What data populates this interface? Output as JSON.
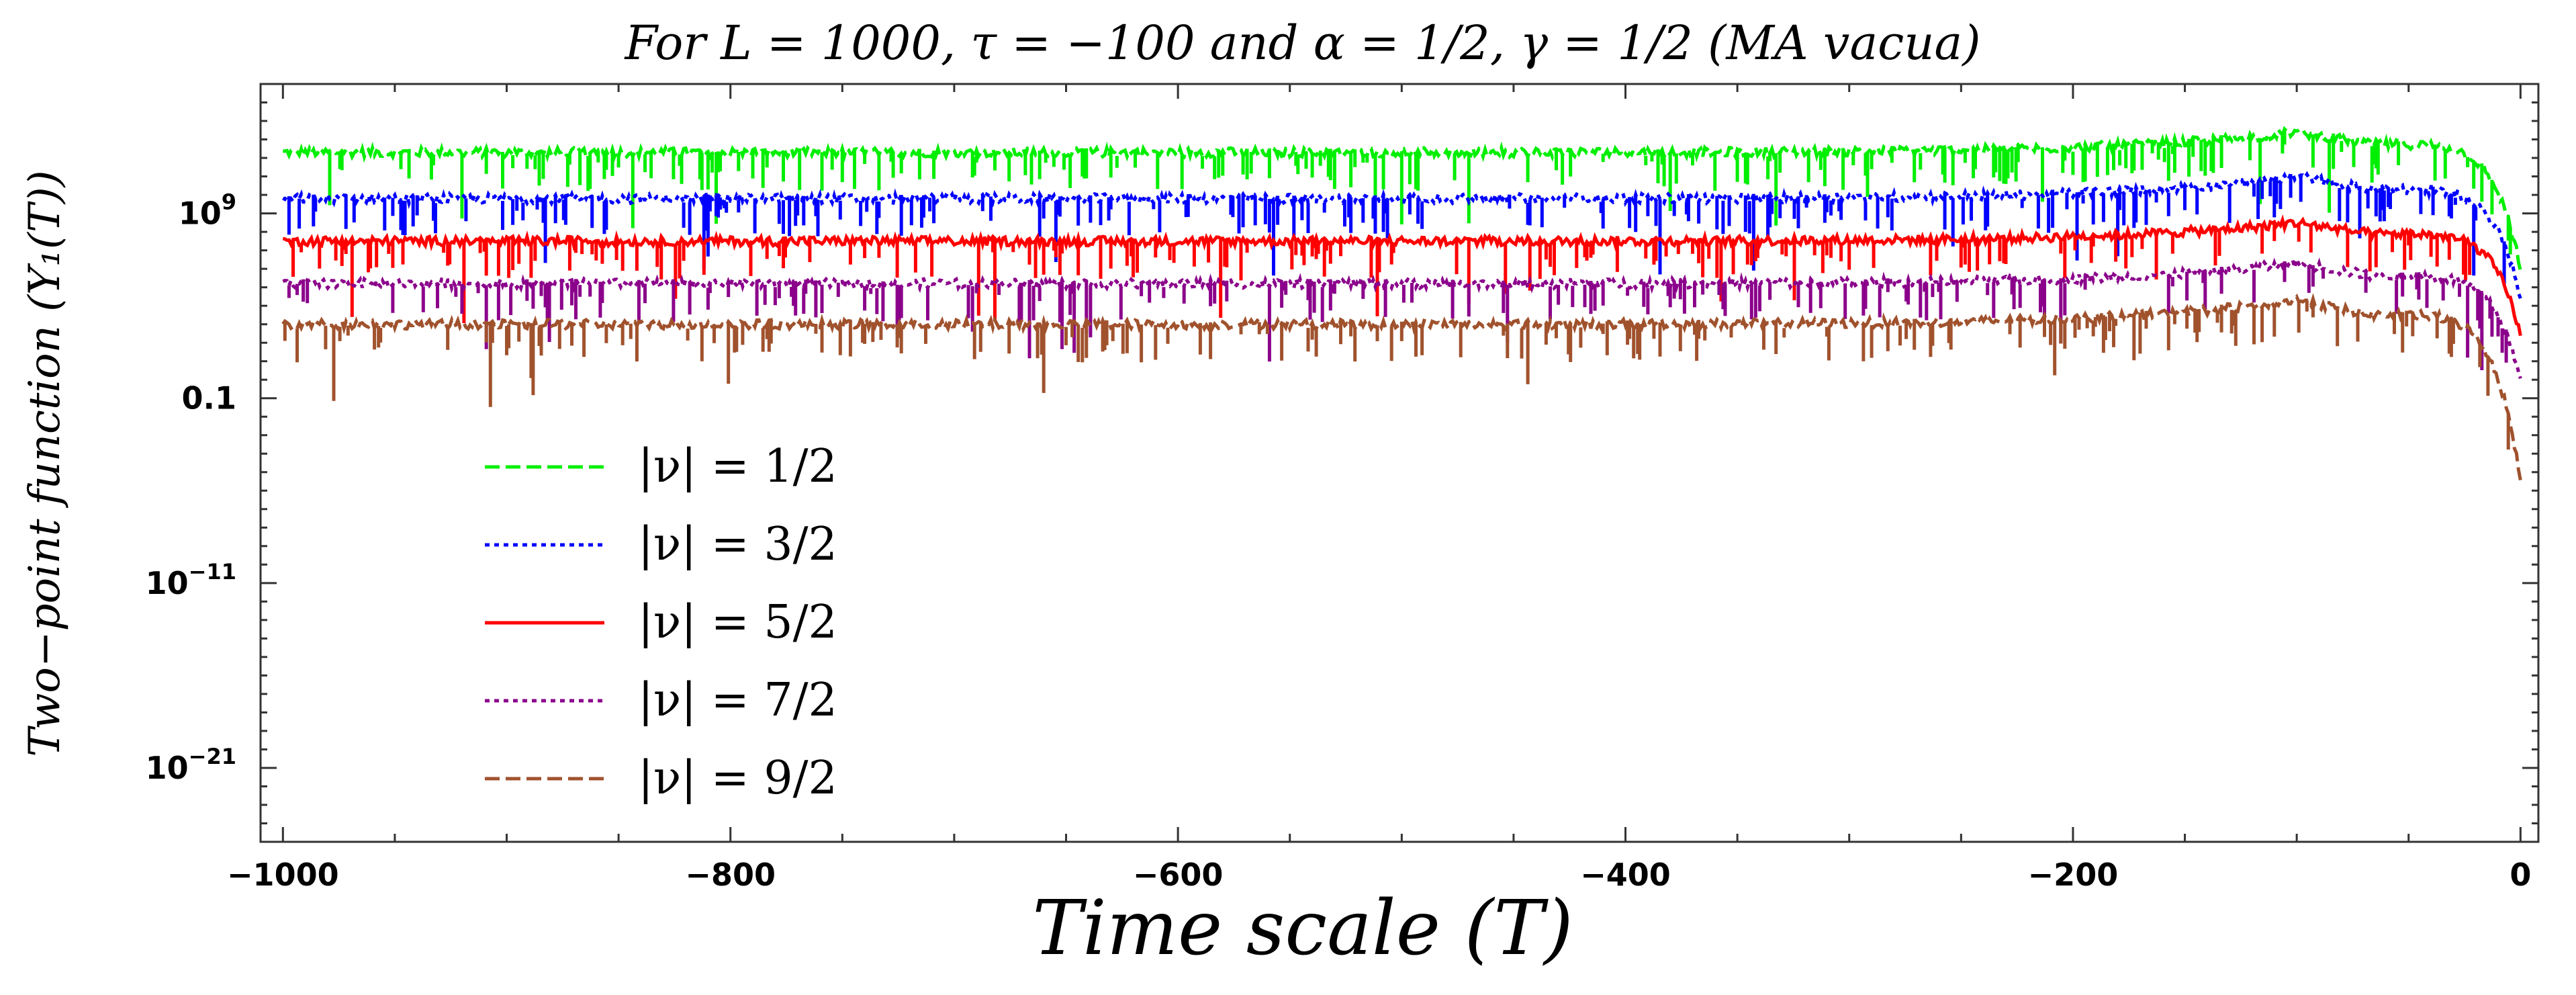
{
  "chart_data": {
    "type": "line",
    "title": "For L = 1000,  τ = −100  and  α = 1/2,  γ = 1/2 (MA vacua)",
    "xlabel": "Time scale  (T)",
    "ylabel": "Two−point function (Y₁(T))",
    "yscale": "log",
    "xlim": [
      -1010,
      8
    ],
    "ylim_log10": [
      -25,
      16
    ],
    "x_ticks": [
      {
        "value": -1000,
        "label": "−1000"
      },
      {
        "value": -800,
        "label": "−800"
      },
      {
        "value": -600,
        "label": "−600"
      },
      {
        "value": -400,
        "label": "−400"
      },
      {
        "value": -200,
        "label": "−200"
      },
      {
        "value": 0,
        "label": "0"
      }
    ],
    "y_ticks": [
      {
        "log10": 9,
        "base": "10",
        "exp": "9"
      },
      {
        "log10": -1,
        "base": "0.1",
        "exp": ""
      },
      {
        "log10": -11,
        "base": "10",
        "exp": "−11"
      },
      {
        "log10": -21,
        "base": "10",
        "exp": "−21"
      }
    ],
    "legend_position": "left-middle",
    "peak_x": -100,
    "series": [
      {
        "name": "|ν| = 1/2",
        "color": "#00ee00",
        "dash": "dashed",
        "baseline_log10": 12.3,
        "peak_log10": 13.4,
        "end_log10": 5.5
      },
      {
        "name": "|ν| = 3/2",
        "color": "#0000ff",
        "dash": "dotted",
        "baseline_log10": 9.8,
        "peak_log10": 11.0,
        "end_log10": 4.0
      },
      {
        "name": "|ν| = 5/2",
        "color": "#ff0000",
        "dash": "solid",
        "baseline_log10": 7.5,
        "peak_log10": 8.5,
        "end_log10": 2.0
      },
      {
        "name": "|ν| = 7/2",
        "color": "#8b008b",
        "dash": "dotted",
        "baseline_log10": 5.2,
        "peak_log10": 6.3,
        "end_log10": -0.5
      },
      {
        "name": "|ν| = 9/2",
        "color": "#a0522d",
        "dash": "dashed",
        "baseline_log10": 3.0,
        "peak_log10": 4.3,
        "end_log10": -6.0
      }
    ]
  }
}
